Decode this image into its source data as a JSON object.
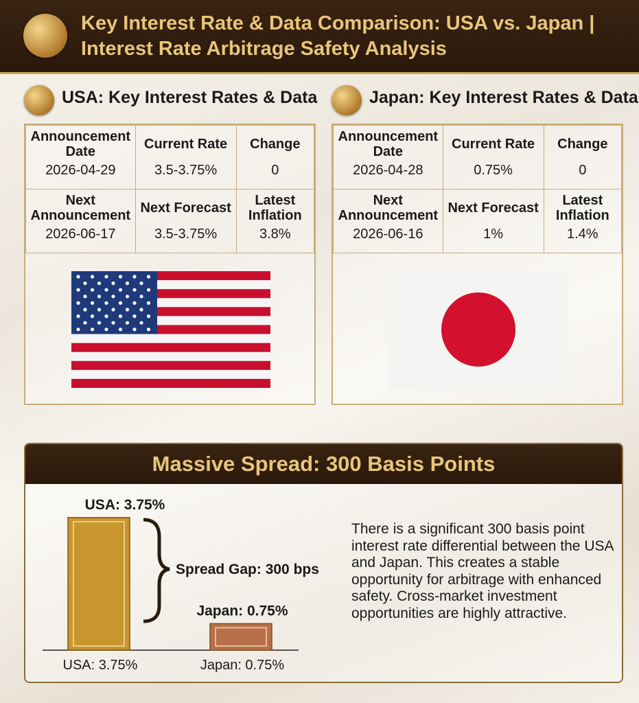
{
  "header": {
    "title_line1": "Key Interest Rate & Data Comparison: USA vs. Japan |",
    "title_line2": "Interest Rate Arbitrage Safety Analysis"
  },
  "usa": {
    "title": "USA: Key Interest Rates & Data",
    "rows": [
      [
        {
          "label": "Announcement Date",
          "value": "2026-04-29"
        },
        {
          "label": "Current Rate",
          "value": "3.5-3.75%"
        },
        {
          "label": "Change",
          "value": "0"
        }
      ],
      [
        {
          "label": "Next Announcement",
          "value": "2026-06-17"
        },
        {
          "label": "Next Forecast",
          "value": "3.5-3.75%"
        },
        {
          "label": "Latest Inflation",
          "value": "3.8%"
        }
      ]
    ]
  },
  "japan": {
    "title": "Japan: Key Interest Rates & Data",
    "rows": [
      [
        {
          "label": "Announcement Date",
          "value": "2026-04-28"
        },
        {
          "label": "Current Rate",
          "value": "0.75%"
        },
        {
          "label": "Change",
          "value": "0"
        }
      ],
      [
        {
          "label": "Next Announcement",
          "value": "2026-06-16"
        },
        {
          "label": "Next Forecast",
          "value": "1%"
        },
        {
          "label": "Latest Inflation",
          "value": "1.4%"
        }
      ]
    ]
  },
  "chart_data": {
    "type": "bar",
    "title": "Massive Spread: 300 Basis Points",
    "categories": [
      "USA: 3.75%",
      "Japan: 0.75%"
    ],
    "values": [
      3.75,
      0.75
    ],
    "value_labels": [
      "USA: 3.75%",
      "Japan: 0.75%"
    ],
    "colors": [
      "#c9962e",
      "#b8704a"
    ],
    "annotation": "Spread Gap: 300 bps",
    "description": "There is a significant 300 basis point interest rate differential between the USA and Japan. This creates a stable opportunity for arbitrage with enhanced safety. Cross-market investment opportunities are highly attractive."
  }
}
